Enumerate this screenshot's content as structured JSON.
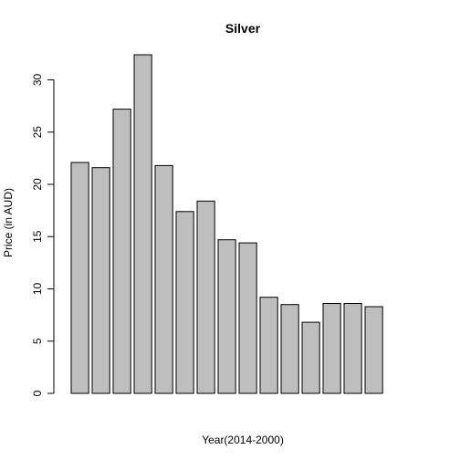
{
  "chart_data": {
    "type": "bar",
    "title": "Silver",
    "xlabel": "Year(2014-2000)",
    "ylabel": "Price (in AUD)",
    "ylim": [
      0,
      32.3
    ],
    "yticks": [
      0,
      5,
      10,
      15,
      20,
      25,
      30
    ],
    "values": [
      22.1,
      21.6,
      27.2,
      32.4,
      21.8,
      17.4,
      18.4,
      14.7,
      14.4,
      9.2,
      8.5,
      6.8,
      8.6,
      8.6,
      8.3
    ],
    "colors": {
      "bar_fill": "#bebebe",
      "bar_stroke": "#000000"
    }
  }
}
